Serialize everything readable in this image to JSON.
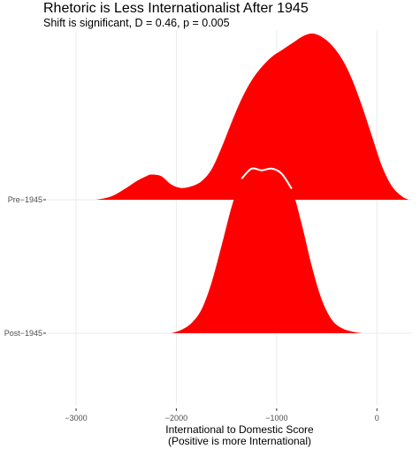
{
  "chart_data": {
    "type": "area",
    "subtype": "ridgeline-density",
    "title": "Rhetoric is Less Internationalist After 1945",
    "subtitle": "Shift is significant, D = 0.46, p = 0.005",
    "xlabel_line1": "International to Domestic Score",
    "xlabel_line2": "(Positive is more International)",
    "ylabel": "",
    "xlim": [
      -3300,
      350
    ],
    "x_ticks": [
      -3000,
      -2000,
      -1000,
      0
    ],
    "x_tick_labels": [
      "−3000",
      "−2000",
      "−1000",
      "0"
    ],
    "categories": [
      "Pre−1945",
      "Post−1945"
    ],
    "grid": true,
    "fill_color": "#ff0000",
    "overlay_line_color": "#ffffff",
    "series": [
      {
        "category": "Pre−1945",
        "x": [
          -2800,
          -2650,
          -2500,
          -2400,
          -2300,
          -2250,
          -2150,
          -2050,
          -1950,
          -1850,
          -1750,
          -1650,
          -1550,
          -1450,
          -1350,
          -1250,
          -1150,
          -1050,
          -950,
          -850,
          -750,
          -650,
          -550,
          -450,
          -350,
          -250,
          -150,
          -50,
          50,
          150,
          250,
          320
        ],
        "density": [
          0.0,
          0.02,
          0.07,
          0.11,
          0.14,
          0.15,
          0.14,
          0.09,
          0.07,
          0.08,
          0.11,
          0.18,
          0.31,
          0.46,
          0.6,
          0.71,
          0.79,
          0.85,
          0.89,
          0.93,
          0.97,
          0.99,
          0.97,
          0.92,
          0.84,
          0.72,
          0.56,
          0.38,
          0.2,
          0.08,
          0.02,
          0.0
        ]
      },
      {
        "category": "Post−1945",
        "x": [
          -2050,
          -1950,
          -1850,
          -1750,
          -1650,
          -1550,
          -1450,
          -1350,
          -1250,
          -1150,
          -1050,
          -950,
          -850,
          -750,
          -650,
          -550,
          -450,
          -350,
          -250,
          -150
        ],
        "density": [
          0.0,
          0.02,
          0.06,
          0.14,
          0.3,
          0.52,
          0.75,
          0.92,
          0.98,
          0.97,
          0.98,
          0.95,
          0.86,
          0.65,
          0.4,
          0.2,
          0.08,
          0.03,
          0.01,
          0.0
        ]
      }
    ]
  }
}
